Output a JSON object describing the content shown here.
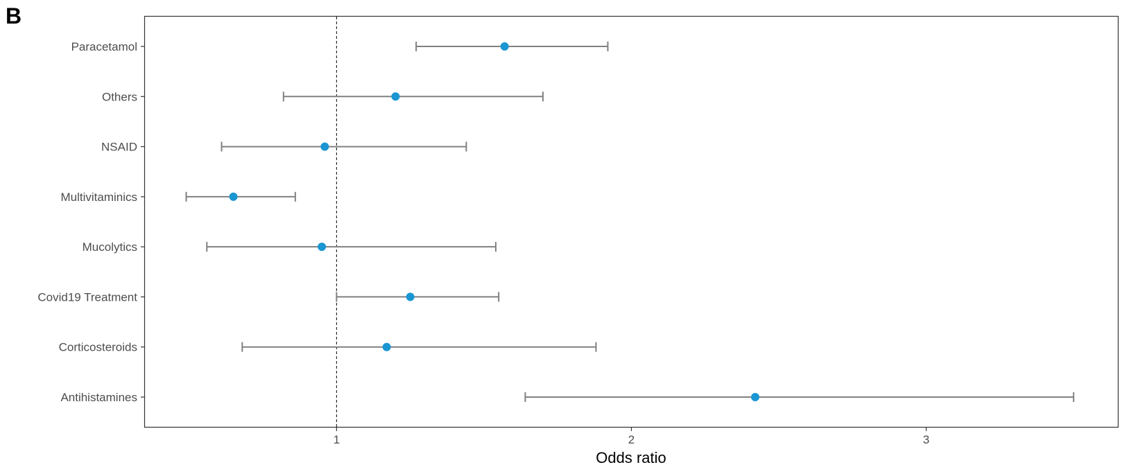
{
  "panel_label": "B",
  "chart_data": {
    "type": "scatter",
    "subtype": "forest-plot",
    "xlabel": "Odds ratio",
    "ylabel": "",
    "xlim": [
      0.35,
      3.65
    ],
    "xticks": [
      1,
      2,
      3
    ],
    "xtick_labels": [
      "1",
      "2",
      "3"
    ],
    "reference_line": 1,
    "grid": false,
    "point_color": "#1a96d2",
    "errorbar_color": "#808080",
    "categories": [
      "Paracetamol",
      "Others",
      "NSAID",
      "Multivitaminics",
      "Mucolytics",
      "Covid19 Treatment",
      "Corticosteroids",
      "Antihistamines"
    ],
    "estimate": [
      1.57,
      1.2,
      0.96,
      0.65,
      0.95,
      1.25,
      1.17,
      2.42
    ],
    "lower": [
      1.27,
      0.82,
      0.61,
      0.49,
      0.56,
      1.0,
      0.68,
      1.64
    ],
    "upper": [
      1.92,
      1.7,
      1.44,
      0.86,
      1.54,
      1.55,
      1.88,
      3.5
    ]
  }
}
